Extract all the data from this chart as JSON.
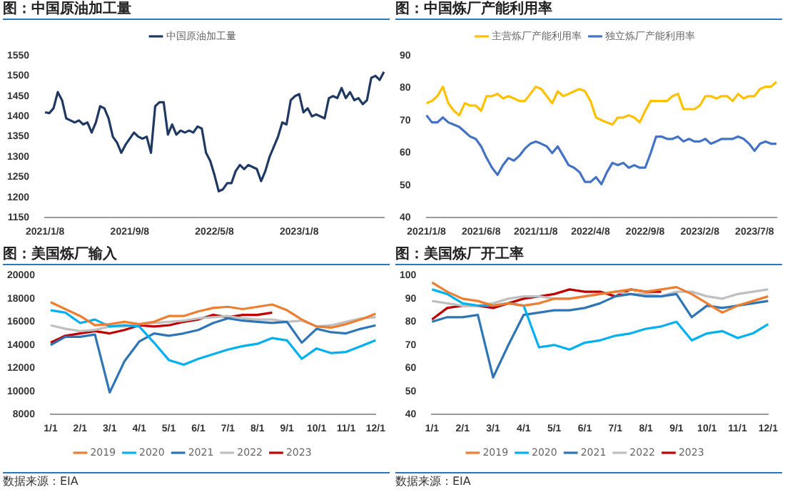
{
  "chart_data": [
    {
      "type": "line",
      "title": "图：中国原油加工量",
      "legend": "top",
      "ylim": [
        1150,
        1550
      ],
      "yticks": [
        1150,
        1200,
        1250,
        1300,
        1350,
        1400,
        1450,
        1500,
        1550
      ],
      "categories": [
        "2021/1/8",
        null,
        null,
        null,
        null,
        null,
        null,
        null,
        null,
        null,
        null,
        null,
        null,
        null,
        null,
        null,
        null,
        null,
        null,
        null,
        "2021/9/8",
        null,
        null,
        null,
        null,
        null,
        null,
        null,
        null,
        null,
        null,
        null,
        null,
        null,
        null,
        null,
        null,
        null,
        null,
        null,
        "2022/5/8",
        null,
        null,
        null,
        null,
        null,
        null,
        null,
        null,
        null,
        null,
        null,
        null,
        null,
        null,
        null,
        null,
        null,
        null,
        null,
        "2023/1/8",
        null,
        null,
        null,
        null,
        null,
        null,
        null,
        null,
        null,
        null,
        null,
        null,
        null,
        null,
        null,
        null,
        null,
        null,
        null,
        null
      ],
      "series": [
        {
          "name": "中国原油加工量",
          "color": "#1f3864",
          "values": [
            1410,
            1408,
            1420,
            1460,
            1440,
            1395,
            1390,
            1385,
            1390,
            1380,
            1385,
            1360,
            1385,
            1425,
            1420,
            1395,
            1350,
            1335,
            1310,
            1330,
            1345,
            1360,
            1350,
            1345,
            1350,
            1310,
            1425,
            1435,
            1435,
            1355,
            1380,
            1355,
            1365,
            1360,
            1365,
            1360,
            1375,
            1370,
            1310,
            1290,
            1255,
            1215,
            1220,
            1235,
            1235,
            1265,
            1280,
            1270,
            1280,
            1275,
            1270,
            1240,
            1265,
            1300,
            1325,
            1350,
            1385,
            1380,
            1440,
            1450,
            1455,
            1410,
            1420,
            1400,
            1405,
            1400,
            1395,
            1445,
            1450,
            1445,
            1470,
            1445,
            1460,
            1440,
            1445,
            1430,
            1440,
            1495,
            1500,
            1490,
            1510
          ]
        }
      ]
    },
    {
      "type": "line",
      "title": "图：中国炼厂产能利用率",
      "legend": "top",
      "ylim": [
        40,
        90
      ],
      "yticks": [
        40,
        50,
        60,
        70,
        80,
        90
      ],
      "categories": [
        "2021/1/8",
        null,
        null,
        null,
        null,
        null,
        null,
        null,
        null,
        null,
        "2021/6/8",
        null,
        null,
        null,
        null,
        null,
        null,
        null,
        null,
        null,
        "2021/11/8",
        null,
        null,
        null,
        null,
        null,
        null,
        null,
        null,
        null,
        "2022/4/8",
        null,
        null,
        null,
        null,
        null,
        null,
        null,
        null,
        null,
        "2022/9/8",
        null,
        null,
        null,
        null,
        null,
        null,
        null,
        null,
        null,
        "2023/2/8",
        null,
        null,
        null,
        null,
        null,
        null,
        null,
        null,
        null,
        "2023/7/8",
        null,
        null,
        null,
        null
      ],
      "series": [
        {
          "name": "主营炼厂产能利用率",
          "color": "#ffc000",
          "values": [
            75.3,
            76,
            77.5,
            80.4,
            75.3,
            73,
            71.6,
            75.3,
            74.6,
            74.6,
            73,
            77.5,
            77.5,
            78.2,
            76.8,
            77.5,
            76.8,
            76,
            76,
            78.2,
            80.4,
            79.7,
            77.5,
            75.3,
            79,
            77.5,
            78.2,
            79,
            79.7,
            79,
            76,
            70.9,
            70.1,
            69.4,
            68.7,
            70.9,
            70.9,
            71.6,
            70.9,
            69.4,
            73,
            76,
            76,
            76,
            76,
            77.5,
            78.2,
            73.5,
            73.5,
            73.5,
            74.6,
            77.5,
            77.5,
            76.8,
            77.5,
            77.5,
            76,
            78.2,
            76.8,
            77.5,
            77.5,
            79.7,
            80.4,
            80.4,
            81.9
          ]
        },
        {
          "name": "独立炼厂产能利用率",
          "color": "#4472c4",
          "values": [
            71.6,
            69.4,
            69.4,
            70.9,
            69.4,
            68.7,
            68,
            66.5,
            65,
            64.3,
            62,
            58.4,
            55.4,
            53.2,
            56.2,
            58.4,
            57.6,
            59.1,
            61.3,
            62.8,
            63.5,
            62.8,
            62,
            59.9,
            62,
            59.1,
            56.2,
            55.4,
            54,
            51,
            51,
            52.5,
            50.3,
            54,
            56.9,
            56.2,
            56.9,
            55.4,
            56.2,
            55.4,
            55.4,
            59.9,
            65,
            65,
            64.3,
            64.3,
            65,
            63.5,
            64.3,
            63.5,
            63.5,
            64.3,
            62.8,
            63.5,
            64.3,
            64.3,
            64.3,
            65,
            64.3,
            62.8,
            60.6,
            62.8,
            63.5,
            62.8,
            62.8
          ]
        }
      ]
    },
    {
      "type": "line",
      "title": "图：美国炼厂输入",
      "legend": "bottom",
      "ylim": [
        8000,
        20000
      ],
      "yticks": [
        8000,
        10000,
        12000,
        14000,
        16000,
        18000,
        20000
      ],
      "annotations": [
        "数据来源：EIA"
      ],
      "categories": [
        "1/1",
        null,
        "2/1",
        null,
        "3/1",
        null,
        "4/1",
        null,
        "5/1",
        null,
        "6/1",
        null,
        "7/1",
        null,
        "8/1",
        null,
        "9/1",
        null,
        "10/1",
        null,
        "11/1",
        null,
        "12/1"
      ],
      "series": [
        {
          "name": "2019",
          "color": "#ed7d31",
          "values": [
            17700,
            17100,
            16500,
            15700,
            15800,
            16000,
            15800,
            16000,
            16500,
            16500,
            16900,
            17200,
            17300,
            17100,
            17300,
            17500,
            17000,
            16200,
            15600,
            15500,
            15800,
            16200,
            16700
          ]
        },
        {
          "name": "2020",
          "color": "#00b0f0",
          "values": [
            17000,
            16800,
            15900,
            16200,
            15600,
            15700,
            15600,
            14200,
            12700,
            12300,
            12800,
            13200,
            13600,
            13900,
            14100,
            14600,
            14400,
            12800,
            13700,
            13300,
            13400,
            13900,
            14400
          ]
        },
        {
          "name": "2021",
          "color": "#2e75b6",
          "values": [
            14000,
            14700,
            14700,
            14900,
            9900,
            12600,
            14300,
            15000,
            14800,
            15000,
            15300,
            15900,
            16300,
            16100,
            16000,
            15900,
            16000,
            14200,
            15400,
            15100,
            15000,
            15400,
            15700
          ]
        },
        {
          "name": "2022",
          "color": "#bfbfbf",
          "values": [
            15700,
            15400,
            15200,
            15300,
            15600,
            15600,
            15800,
            15900,
            16000,
            16100,
            16300,
            16400,
            16500,
            16300,
            16200,
            16200,
            16000,
            16100,
            15600,
            15700,
            16000,
            16300,
            16400
          ]
        },
        {
          "name": "2023",
          "color": "#c00000",
          "values": [
            14200,
            14800,
            15000,
            15200,
            15000,
            15300,
            15700,
            15600,
            15700,
            16000,
            16200,
            16600,
            16400,
            16600,
            16600,
            16800,
            null,
            null,
            null,
            null,
            null,
            null,
            null
          ]
        }
      ]
    },
    {
      "type": "line",
      "title": "图：美国炼厂开工率",
      "legend": "bottom",
      "ylim": [
        40,
        100
      ],
      "yticks": [
        40,
        50,
        60,
        70,
        80,
        90,
        100
      ],
      "annotations": [
        "数据来源：EIA"
      ],
      "categories": [
        "1/1",
        null,
        "2/1",
        null,
        "3/1",
        null,
        "4/1",
        null,
        "5/1",
        null,
        "6/1",
        null,
        "7/1",
        null,
        "8/1",
        null,
        "9/1",
        null,
        "10/1",
        null,
        "11/1",
        null,
        "12/1"
      ],
      "series": [
        {
          "name": "2019",
          "color": "#ed7d31",
          "values": [
            97,
            93,
            90,
            89,
            87,
            88,
            87,
            88,
            90,
            90,
            91,
            92,
            93,
            94,
            93,
            94,
            95,
            92,
            88,
            84,
            87,
            89,
            91
          ]
        },
        {
          "name": "2020",
          "color": "#00b0f0",
          "values": [
            94,
            92,
            88,
            87,
            87,
            88,
            87,
            69,
            70,
            68,
            71,
            72,
            74,
            75,
            77,
            78,
            80,
            72,
            75,
            76,
            73,
            75,
            79
          ]
        },
        {
          "name": "2021",
          "color": "#2e75b6",
          "values": [
            80,
            82,
            82,
            83,
            56,
            70,
            83,
            84,
            85,
            85,
            86,
            88,
            91,
            92,
            91,
            91,
            92,
            82,
            87,
            86,
            87,
            88,
            89
          ]
        },
        {
          "name": "2022",
          "color": "#bfbfbf",
          "values": [
            89,
            88,
            87,
            87,
            88,
            90,
            91,
            91,
            90,
            90,
            91,
            92,
            93,
            92,
            92,
            91,
            93,
            93,
            91,
            90,
            92,
            93,
            94
          ]
        },
        {
          "name": "2023",
          "color": "#c00000",
          "values": [
            81,
            86,
            87,
            87,
            86,
            88,
            90,
            91,
            92,
            94,
            93,
            93,
            91,
            94,
            93,
            93,
            null,
            null,
            null,
            null,
            null,
            null,
            null
          ]
        }
      ]
    }
  ]
}
